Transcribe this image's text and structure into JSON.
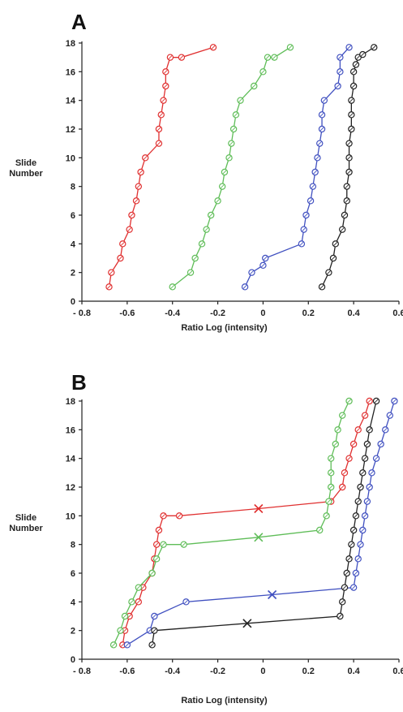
{
  "chart_data": [
    {
      "panel_label": "A",
      "type": "line",
      "xlabel": "Ratio Log (intensity)",
      "ylabel": "Slide Number",
      "xlim": [
        -0.8,
        0.6
      ],
      "ylim": [
        0,
        18
      ],
      "xticks": [
        "- 0.8",
        "-0.6",
        "-0.4",
        "-0.2",
        "0",
        "0.2",
        "0.4",
        "0.6"
      ],
      "yticks": [
        "0",
        "2",
        "4",
        "6",
        "8",
        "10",
        "12",
        "14",
        "16",
        "18"
      ],
      "series": [
        {
          "color": "#e03030",
          "x": [
            -0.68,
            -0.67,
            -0.63,
            -0.62,
            -0.59,
            -0.58,
            -0.56,
            -0.55,
            -0.54,
            -0.52,
            -0.46,
            -0.46,
            -0.45,
            -0.44,
            -0.43,
            -0.43,
            -0.41,
            -0.36,
            -0.22
          ],
          "y": [
            1,
            2,
            3,
            4,
            5,
            6,
            7,
            8,
            9,
            10,
            11,
            12,
            13,
            14,
            15,
            16,
            17,
            17,
            17.7
          ]
        },
        {
          "color": "#5fbd58",
          "x": [
            -0.4,
            -0.32,
            -0.3,
            -0.27,
            -0.25,
            -0.23,
            -0.2,
            -0.18,
            -0.17,
            -0.15,
            -0.14,
            -0.13,
            -0.12,
            -0.1,
            -0.04,
            0.0,
            0.02,
            0.05,
            0.12
          ],
          "y": [
            1,
            2,
            3,
            4,
            5,
            6,
            7,
            8,
            9,
            10,
            11,
            12,
            13,
            14,
            15,
            16,
            17,
            17,
            17.7
          ]
        },
        {
          "color": "#4050c0",
          "x": [
            -0.08,
            -0.05,
            0.0,
            0.01,
            0.17,
            0.18,
            0.19,
            0.21,
            0.22,
            0.23,
            0.24,
            0.25,
            0.26,
            0.26,
            0.27,
            0.33,
            0.34,
            0.34,
            0.38
          ],
          "y": [
            1,
            2,
            2.5,
            3,
            4,
            5,
            6,
            7,
            8,
            9,
            10,
            11,
            12,
            13,
            14,
            15,
            16,
            17,
            17.7
          ]
        },
        {
          "color": "#222222",
          "x": [
            0.26,
            0.29,
            0.31,
            0.32,
            0.35,
            0.36,
            0.37,
            0.37,
            0.38,
            0.38,
            0.38,
            0.39,
            0.39,
            0.39,
            0.4,
            0.4,
            0.41,
            0.42,
            0.44,
            0.49
          ],
          "y": [
            1,
            2,
            3,
            4,
            5,
            6,
            7,
            8,
            9,
            10,
            11,
            12,
            13,
            14,
            15,
            16,
            16.5,
            17,
            17.2,
            17.7
          ]
        }
      ]
    },
    {
      "panel_label": "B",
      "type": "line",
      "xlabel": "Ratio Log (intensity)",
      "ylabel": "Slide Number",
      "xlim": [
        -0.8,
        0.6
      ],
      "ylim": [
        0,
        18
      ],
      "xticks": [
        "- 0.8",
        "-0.6",
        "-0.4",
        "-0.2",
        "0",
        "0.2",
        "0.4",
        "0.6"
      ],
      "yticks": [
        "0",
        "2",
        "4",
        "6",
        "8",
        "10",
        "12",
        "14",
        "16",
        "18"
      ],
      "series": [
        {
          "color": "#e03030",
          "x": [
            -0.62,
            -0.61,
            -0.59,
            -0.55,
            -0.53,
            -0.49,
            -0.48,
            -0.47,
            -0.46,
            -0.44,
            -0.37,
            -0.02,
            0.3,
            0.35,
            0.36,
            0.38,
            0.4,
            0.42,
            0.45,
            0.47
          ],
          "y": [
            1,
            2,
            3,
            4,
            5,
            6,
            7,
            8,
            9,
            10,
            10,
            10.5,
            11,
            12,
            13,
            14,
            15,
            16,
            17,
            18
          ],
          "markers": [
            "o",
            "o",
            "o",
            "o",
            "o",
            "o",
            "o",
            "o",
            "o",
            "o",
            "o",
            "x",
            "o",
            "o",
            "o",
            "o",
            "o",
            "o",
            "o",
            "o"
          ]
        },
        {
          "color": "#5fbd58",
          "x": [
            -0.66,
            -0.63,
            -0.61,
            -0.58,
            -0.55,
            -0.49,
            -0.47,
            -0.44,
            -0.35,
            -0.02,
            0.25,
            0.28,
            0.29,
            0.3,
            0.3,
            0.3,
            0.32,
            0.33,
            0.35,
            0.38
          ],
          "y": [
            1,
            2,
            3,
            4,
            5,
            6,
            7,
            8,
            8,
            8.5,
            9,
            10,
            11,
            12,
            13,
            14,
            15,
            16,
            17,
            18
          ],
          "markers": [
            "o",
            "o",
            "o",
            "o",
            "o",
            "o",
            "o",
            "o",
            "o",
            "x",
            "o",
            "o",
            "o",
            "o",
            "o",
            "o",
            "o",
            "o",
            "o",
            "o"
          ]
        },
        {
          "color": "#4050c0",
          "x": [
            -0.6,
            -0.5,
            -0.48,
            -0.34,
            0.04,
            0.4,
            0.41,
            0.42,
            0.43,
            0.44,
            0.45,
            0.46,
            0.47,
            0.48,
            0.5,
            0.52,
            0.54,
            0.56,
            0.58
          ],
          "y": [
            1,
            2,
            3,
            4,
            4.5,
            5,
            6,
            7,
            8,
            9,
            10,
            11,
            12,
            13,
            14,
            15,
            16,
            17,
            18
          ],
          "markers": [
            "o",
            "o",
            "o",
            "o",
            "x",
            "o",
            "o",
            "o",
            "o",
            "o",
            "o",
            "o",
            "o",
            "o",
            "o",
            "o",
            "o",
            "o",
            "o"
          ]
        },
        {
          "color": "#222222",
          "x": [
            -0.49,
            -0.48,
            -0.07,
            0.34,
            0.35,
            0.36,
            0.37,
            0.38,
            0.39,
            0.4,
            0.41,
            0.42,
            0.43,
            0.44,
            0.45,
            0.46,
            0.47,
            0.5
          ],
          "y": [
            1,
            2,
            2.5,
            3,
            4,
            5,
            6,
            7,
            8,
            9,
            10,
            11,
            12,
            13,
            14,
            15,
            16,
            18
          ],
          "markers": [
            "o",
            "o",
            "x",
            "o",
            "o",
            "o",
            "o",
            "o",
            "o",
            "o",
            "o",
            "o",
            "o",
            "o",
            "o",
            "o",
            "o",
            "o"
          ]
        }
      ]
    }
  ]
}
